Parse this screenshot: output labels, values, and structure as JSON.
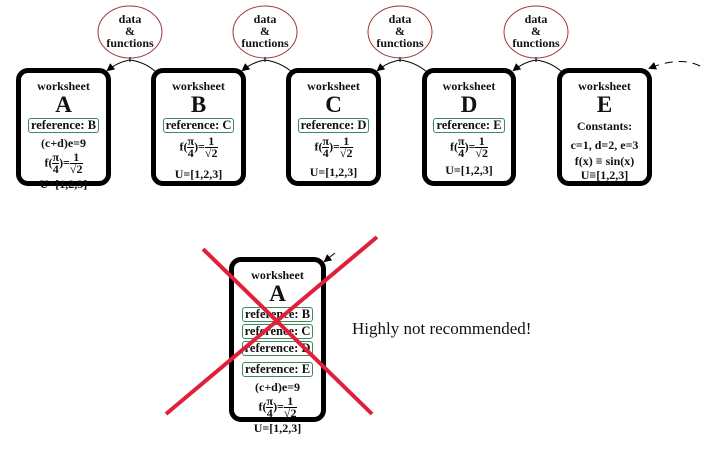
{
  "ellipse_label": [
    "data",
    "&",
    "functions"
  ],
  "worksheets": [
    {
      "title": "worksheet",
      "letter": "A",
      "reference": "reference: B",
      "eq": "(c+d)e=9",
      "f_prefix": "f(",
      "f_num": "π",
      "f_den": "4",
      "f_mid": ")=",
      "r_num": "1",
      "r_den": "√2",
      "u": "U=[1,2,3]"
    },
    {
      "title": "worksheet",
      "letter": "B",
      "reference": "reference: C",
      "f_prefix": "f(",
      "f_num": "π",
      "f_den": "4",
      "f_mid": ")=",
      "r_num": "1",
      "r_den": "√2",
      "u": "U=[1,2,3]"
    },
    {
      "title": "worksheet",
      "letter": "C",
      "reference": "reference: D",
      "f_prefix": "f(",
      "f_num": "π",
      "f_den": "4",
      "f_mid": ")=",
      "r_num": "1",
      "r_den": "√2",
      "u": "U=[1,2,3]"
    },
    {
      "title": "worksheet",
      "letter": "D",
      "reference": "reference: E",
      "f_prefix": "f(",
      "f_num": "π",
      "f_den": "4",
      "f_mid": ")=",
      "r_num": "1",
      "r_den": "√2",
      "u": "U=[1,2,3]"
    },
    {
      "title": "worksheet",
      "letter": "E",
      "constants_label": "Constants:",
      "constants": "c=1, d=2, e=3",
      "fx": "f(x) ≡ sin(x)",
      "u": "U≡[1,2,3]"
    }
  ],
  "bad_worksheet": {
    "title": "worksheet",
    "letter": "A",
    "references": [
      "reference: B",
      "reference: C",
      "reference: D",
      "reference: E"
    ],
    "eq": "(c+d)e=9",
    "f_prefix": "f(",
    "f_num": "π",
    "f_den": "4",
    "f_mid": ")=",
    "r_num": "1",
    "r_den": "√2",
    "u": "U=[1,2,3]"
  },
  "warning": "Highly not recommended!",
  "colors": {
    "ellipse_border": "#a04040",
    "reference_border": "#3a8a5a",
    "cross": "#e0203a"
  }
}
